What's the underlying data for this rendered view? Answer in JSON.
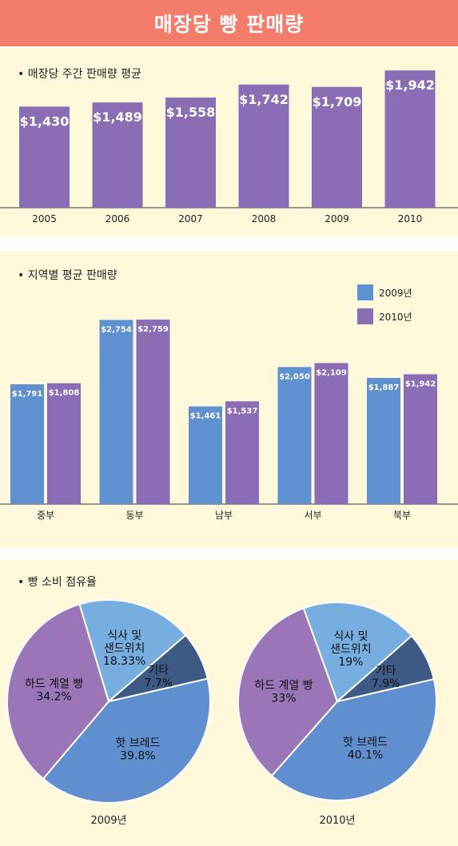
{
  "header": {
    "title": "매장당 빵 판매량"
  },
  "colors": {
    "header_bg": "#f47c6b",
    "panel_bg": "#fff8db",
    "purple": "#8a6db5",
    "blue": "#5f90cf",
    "pie_blue": "#5f8fcf",
    "pie_purple": "#9a76b8",
    "pie_light_blue": "#77aee0",
    "pie_dark": "#3d5a85"
  },
  "chart_data": [
    {
      "type": "bar",
      "title": "• 매장당 주간 판매량 평균",
      "categories": [
        "2005",
        "2006",
        "2007",
        "2008",
        "2009",
        "2010"
      ],
      "values": [
        1430,
        1489,
        1558,
        1742,
        1709,
        1942
      ],
      "value_labels": [
        "$1,430",
        "$1,489",
        "$1,558",
        "$1,742",
        "$1,709",
        "$1,942"
      ],
      "ylim": [
        0,
        2000
      ]
    },
    {
      "type": "bar",
      "title": "• 지역별 평균 판매량",
      "categories": [
        "중부",
        "동부",
        "남부",
        "서부",
        "북부"
      ],
      "series": [
        {
          "name": "2009년",
          "values": [
            1791,
            2754,
            1461,
            2050,
            1887
          ],
          "value_labels": [
            "$1,791",
            "$2,754",
            "$1,461",
            "$2,050",
            "$1,887"
          ]
        },
        {
          "name": "2010년",
          "values": [
            1808,
            2759,
            1537,
            2109,
            1942
          ],
          "value_labels": [
            "$1,808",
            "$2,759",
            "$1,537",
            "$2,109",
            "$1,942"
          ]
        }
      ],
      "ylim": [
        0,
        3000
      ],
      "legend": "top-right"
    },
    {
      "type": "pie",
      "title": "• 빵 소비 점유율",
      "pies": [
        {
          "name": "2009년",
          "slices": [
            {
              "label": "핫 브레드",
              "value": 39.8,
              "value_label": "39.8%"
            },
            {
              "label": "하드 계열 빵",
              "value": 34.2,
              "value_label": "34.2%"
            },
            {
              "label": "식사 및 샌드위치",
              "label_lines": [
                "식사 및",
                "샌드위치"
              ],
              "value": 18.33,
              "value_label": "18.33%"
            },
            {
              "label": "기타",
              "value": 7.7,
              "value_label": "7.7%"
            }
          ]
        },
        {
          "name": "2010년",
          "slices": [
            {
              "label": "핫 브레드",
              "value": 40.1,
              "value_label": "40.1%"
            },
            {
              "label": "하드 계열 빵",
              "value": 33,
              "value_label": "33%"
            },
            {
              "label": "식사 및 샌드위치",
              "label_lines": [
                "식사 및",
                "샌드위치"
              ],
              "value": 19,
              "value_label": "19%"
            },
            {
              "label": "기타",
              "value": 7.9,
              "value_label": "7.9%"
            }
          ]
        }
      ]
    }
  ]
}
